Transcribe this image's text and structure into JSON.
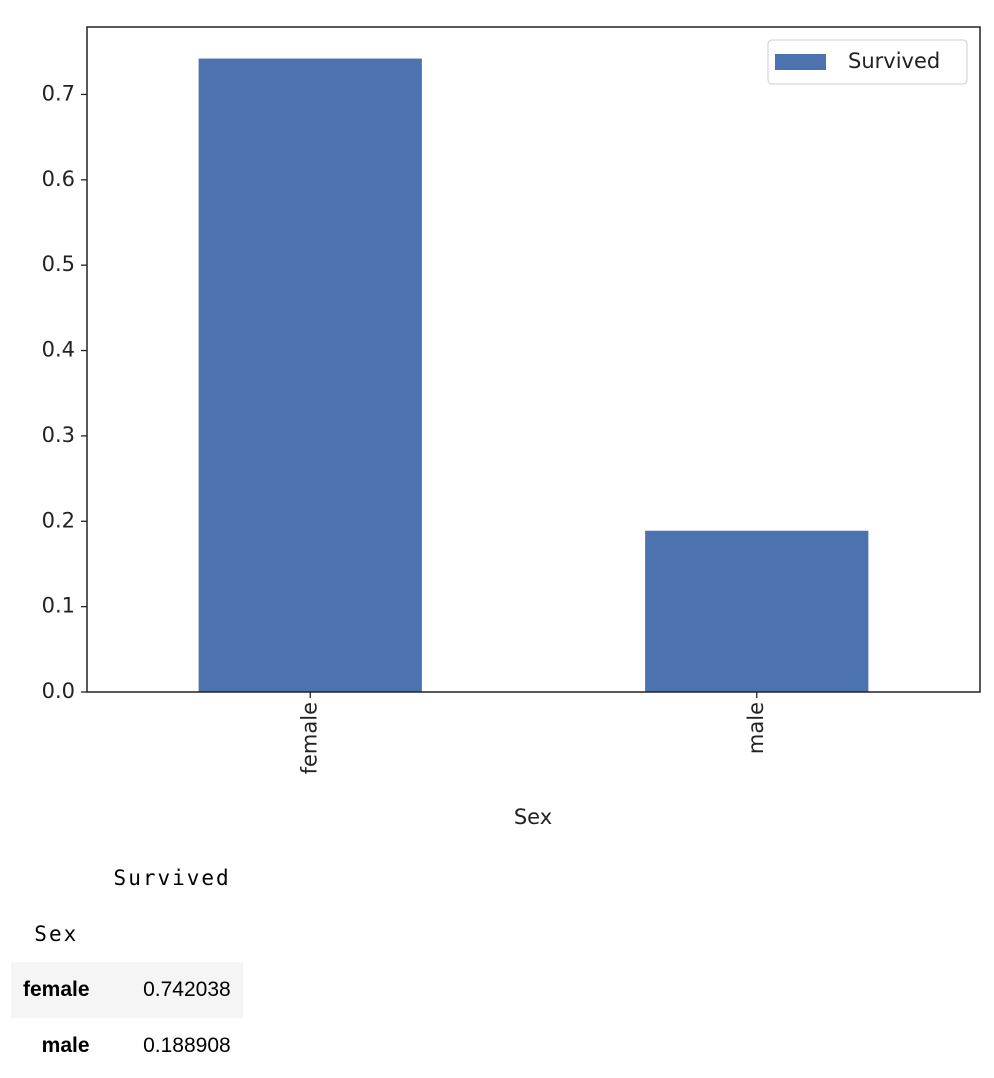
{
  "chart_data": {
    "type": "bar",
    "xlabel": "Sex",
    "categories": [
      "female",
      "male"
    ],
    "series": [
      {
        "name": "Survived",
        "color": "#4c72b0",
        "values": [
          0.742038,
          0.188908
        ]
      }
    ],
    "ylim": [
      0,
      0.779
    ],
    "yticks": [
      {
        "value": 0,
        "label": "0.0"
      },
      0.1,
      0.2,
      0.3,
      0.4,
      0.5,
      0.6,
      0.7
    ],
    "legend": "upper right",
    "grid": false
  },
  "table": {
    "columns": [
      "Survived"
    ],
    "index_name": "Sex",
    "rows": [
      [
        "female",
        "0.742038"
      ],
      [
        "male",
        "0.188908"
      ]
    ]
  }
}
